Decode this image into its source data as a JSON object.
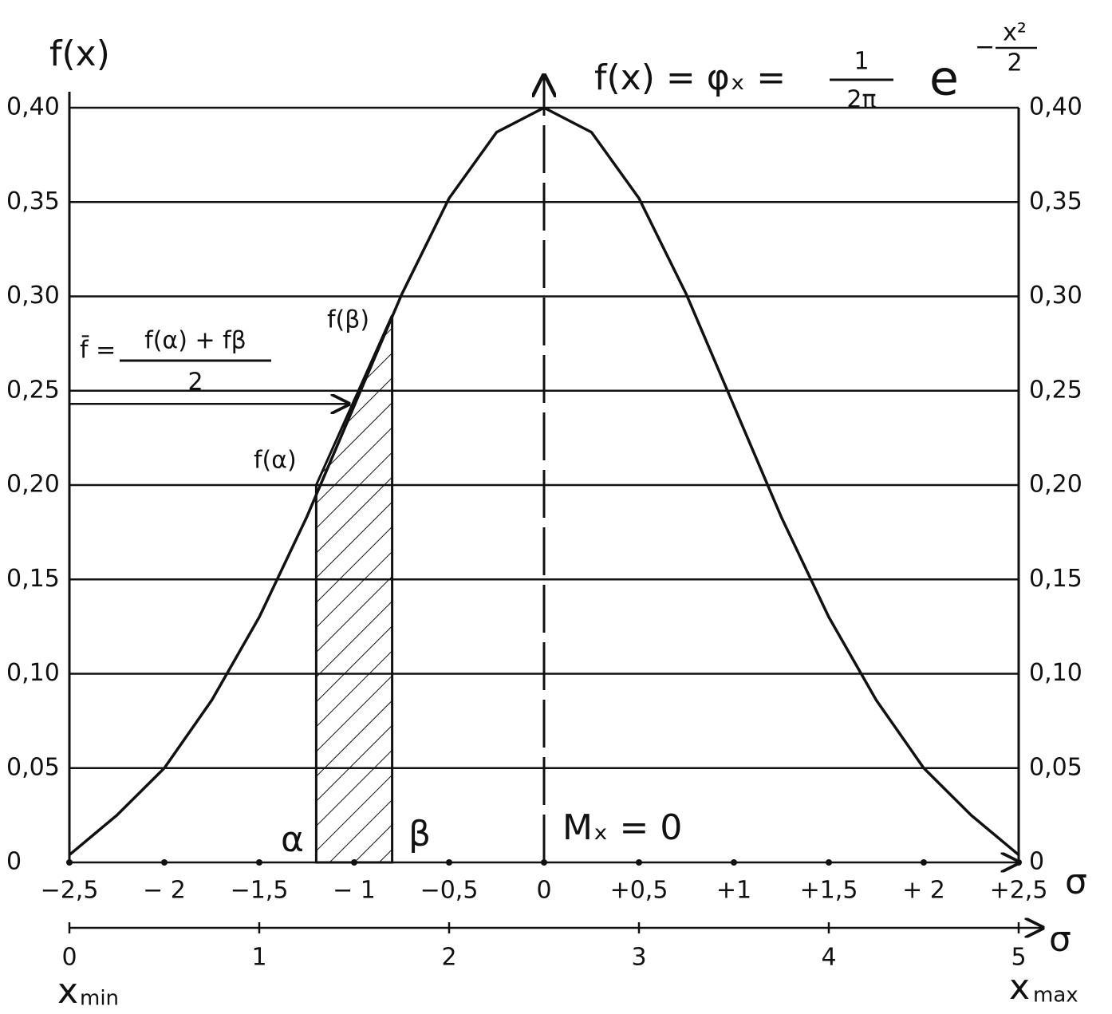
{
  "chart_data": {
    "type": "line",
    "ylabel": "f(x)",
    "xlabel": "σ",
    "x2label": "σ",
    "formula": {
      "lhs": "f(x) = φₓ =",
      "num": "1",
      "den": "2π",
      "base": "e",
      "exp_sign": "−",
      "exp_num": "x²",
      "exp_den": "2"
    },
    "mean_formula": {
      "lhs": "f̄ =",
      "num": "f(α) + fβ",
      "den": "2"
    },
    "labels": {
      "f_beta": "f(β)",
      "f_alpha": "f(α)",
      "alpha": "α",
      "beta": "β",
      "mode": "Mₓ = 0"
    },
    "x_min": {
      "base": "x",
      "sub": "min"
    },
    "x_max": {
      "base": "x",
      "sub": "max"
    },
    "x": [
      -2.5,
      -2.25,
      -2.0,
      -1.75,
      -1.5,
      -1.25,
      -1.0,
      -0.75,
      -0.5,
      -0.25,
      0,
      0.25,
      0.5,
      0.75,
      1.0,
      1.25,
      1.5,
      1.75,
      2.0,
      2.25,
      2.5
    ],
    "series": [
      {
        "color": "#111111",
        "values": [
          0.004,
          0.025,
          0.05,
          0.086,
          0.13,
          0.183,
          0.242,
          0.301,
          0.352,
          0.387,
          0.4,
          0.387,
          0.352,
          0.301,
          0.242,
          0.183,
          0.13,
          0.086,
          0.05,
          0.025,
          0.004
        ]
      }
    ],
    "shaded": {
      "x": [
        -1.2,
        -0.8
      ],
      "values": [
        0.2,
        0.29
      ]
    },
    "mean_arrow": {
      "x": -1.03,
      "value": 0.243
    },
    "xlim": [
      -2.5,
      2.5
    ],
    "xticks": [
      {
        "value": -2.5,
        "label": "−2,5"
      },
      {
        "value": -2,
        "label": "− 2"
      },
      {
        "value": -1.5,
        "label": "−1,5"
      },
      {
        "value": -1,
        "label": "− 1"
      },
      {
        "value": -0.5,
        "label": "−0,5"
      },
      0,
      {
        "value": 0.5,
        "label": "+0,5"
      },
      {
        "value": 1,
        "label": "+1"
      },
      {
        "value": 1.5,
        "label": "+1,5"
      },
      {
        "value": 2,
        "label": "+ 2"
      },
      {
        "value": 2.5,
        "label": "+2,5"
      }
    ],
    "x2lim": [
      0,
      5
    ],
    "x2ticks": [
      0,
      1,
      2,
      3,
      4,
      5
    ],
    "ylim": [
      0,
      0.4
    ],
    "yticks": [
      0,
      {
        "value": 0.05,
        "label": "0,05"
      },
      {
        "value": 0.1,
        "label": "0,10"
      },
      {
        "value": 0.15,
        "label": "0,15"
      },
      {
        "value": 0.2,
        "label": "0,20"
      },
      {
        "value": 0.25,
        "label": "0,25"
      },
      {
        "value": 0.3,
        "label": "0,30"
      },
      {
        "value": 0.35,
        "label": "0,35"
      },
      {
        "value": 0.4,
        "label": "0,40"
      }
    ],
    "grid": true
  }
}
